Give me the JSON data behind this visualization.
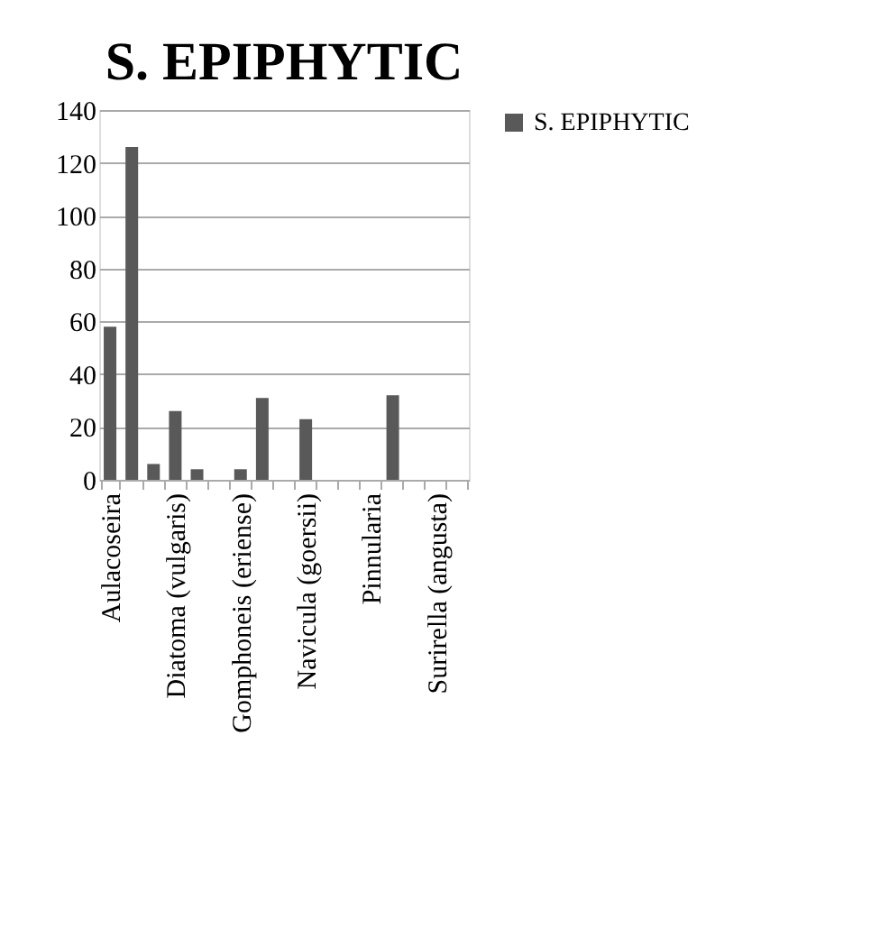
{
  "chart_data": {
    "type": "bar",
    "title": "S. EPIPHYTIC",
    "categories": [
      "Aulacoseira",
      null,
      null,
      "Diatoma (vulgaris)",
      null,
      null,
      "Gomphoneis (eriense)",
      null,
      null,
      "Navicula (goersii)",
      null,
      null,
      "Pinnularia",
      null,
      null,
      "Surirella (angusta)",
      null
    ],
    "series": [
      {
        "name": "S. EPIPHYTIC",
        "color": "#595959",
        "values": [
          58,
          126,
          6,
          26,
          4,
          0,
          4,
          31,
          0,
          23,
          0,
          0,
          0,
          32,
          0,
          0,
          0
        ]
      }
    ],
    "ylim": [
      0,
      140
    ],
    "yticks": [
      0,
      20,
      40,
      60,
      80,
      100,
      120,
      140
    ],
    "grid": "y",
    "legend": "right"
  }
}
